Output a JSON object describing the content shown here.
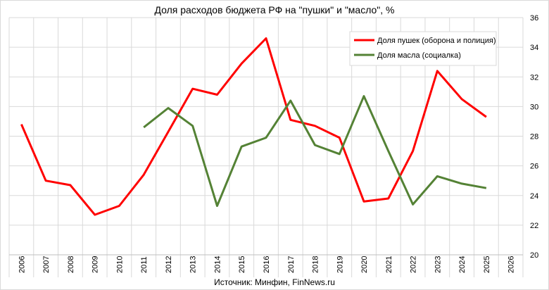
{
  "chart_data": {
    "type": "line",
    "title": "Доля расходов бюджета РФ на \"пушки\" и \"масло\", %",
    "source": "Источник: Минфин, FinNews.ru",
    "categories": [
      "2006",
      "2007",
      "2008",
      "2009",
      "2010",
      "2011",
      "2012",
      "2013",
      "2014",
      "2015",
      "2016",
      "2017",
      "2018",
      "2019",
      "2020",
      "2021",
      "2022",
      "2023",
      "2024",
      "2025",
      "2026"
    ],
    "y_axis": {
      "position": "right",
      "min": 20,
      "max": 36,
      "step": 2,
      "ticks": [
        "20",
        "22",
        "24",
        "26",
        "28",
        "30",
        "32",
        "34",
        "36"
      ]
    },
    "grid": "horizontal",
    "legend": "top-right",
    "series": [
      {
        "name": "Доля пушек (оборона и полиция)",
        "color": "#ff0000",
        "values": [
          28.8,
          25.0,
          24.7,
          22.7,
          23.3,
          25.4,
          28.3,
          31.2,
          30.8,
          32.9,
          34.6,
          29.1,
          28.7,
          27.9,
          23.6,
          23.8,
          27.0,
          32.4,
          30.5,
          29.3,
          null
        ]
      },
      {
        "name": "Доля масла (социалка)",
        "color": "#548235",
        "values": [
          null,
          null,
          null,
          null,
          null,
          28.6,
          29.9,
          28.7,
          23.3,
          27.3,
          27.9,
          30.4,
          27.4,
          26.8,
          30.7,
          27.0,
          23.4,
          25.3,
          24.8,
          24.5,
          null
        ]
      }
    ]
  }
}
